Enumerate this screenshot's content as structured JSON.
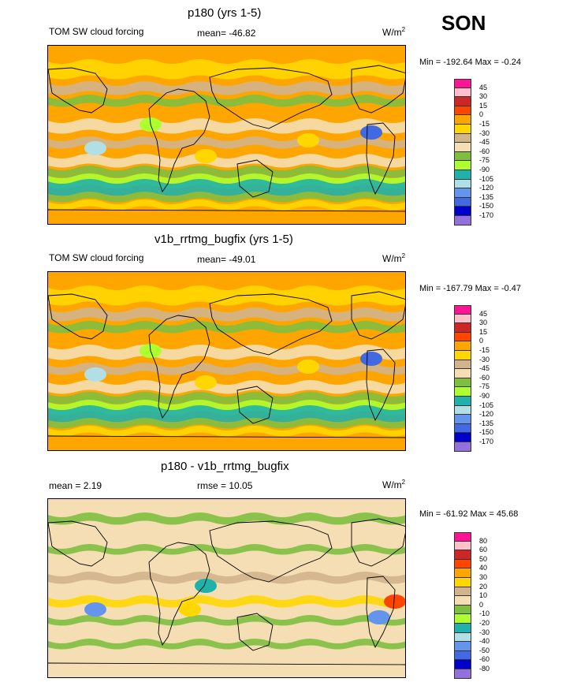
{
  "season": "SON",
  "panels": [
    {
      "title": "p180 (yrs 1-5)",
      "left_label": "TOM SW cloud forcing",
      "stat_label": "mean= -46.82",
      "units_base": "W/m",
      "units_sup": "2",
      "minmax": "Min = -192.64 Max =  -0.24",
      "levels": [
        "45",
        "30",
        "15",
        "0",
        "-15",
        "-30",
        "-45",
        "-60",
        "-75",
        "-90",
        "-105",
        "-120",
        "-135",
        "-150",
        "-170"
      ],
      "colors": [
        "#ff1493",
        "#ffc0cb",
        "#cd2626",
        "#ff4500",
        "#ffa500",
        "#ffd700",
        "#d2b48c",
        "#f5deb3",
        "#7fbf3f",
        "#adff2f",
        "#20b2aa",
        "#b0e0e6",
        "#6495ed",
        "#4169e1",
        "#0000cd",
        "#9370db"
      ],
      "background": "#ffa500"
    },
    {
      "title": "v1b_rrtmg_bugfix (yrs 1-5)",
      "left_label": "TOM SW cloud forcing",
      "stat_label": "mean= -49.01",
      "units_base": "W/m",
      "units_sup": "2",
      "minmax": "Min = -167.79 Max =  -0.47",
      "levels": [
        "45",
        "30",
        "15",
        "0",
        "-15",
        "-30",
        "-45",
        "-60",
        "-75",
        "-90",
        "-105",
        "-120",
        "-135",
        "-150",
        "-170"
      ],
      "colors": [
        "#ff1493",
        "#ffc0cb",
        "#cd2626",
        "#ff4500",
        "#ffa500",
        "#ffd700",
        "#d2b48c",
        "#f5deb3",
        "#7fbf3f",
        "#adff2f",
        "#20b2aa",
        "#b0e0e6",
        "#6495ed",
        "#4169e1",
        "#0000cd",
        "#9370db"
      ],
      "background": "#ffa500"
    },
    {
      "title": "p180 - v1b_rrtmg_bugfix",
      "left_label": "mean =   2.19",
      "stat_label": "rmse =  10.05",
      "units_base": "W/m",
      "units_sup": "2",
      "minmax": "Min = -61.92 Max =  45.68",
      "levels": [
        "80",
        "60",
        "50",
        "40",
        "30",
        "20",
        "10",
        "0",
        "-10",
        "-20",
        "-30",
        "-40",
        "-50",
        "-60",
        "-80"
      ],
      "colors": [
        "#ff1493",
        "#ffc0cb",
        "#cd2626",
        "#ff4500",
        "#ffa500",
        "#ffd700",
        "#d2b48c",
        "#f5deb3",
        "#7fbf3f",
        "#adff2f",
        "#20b2aa",
        "#b0e0e6",
        "#6495ed",
        "#4169e1",
        "#0000cd",
        "#9370db"
      ],
      "background": "#f5deb3"
    }
  ]
}
